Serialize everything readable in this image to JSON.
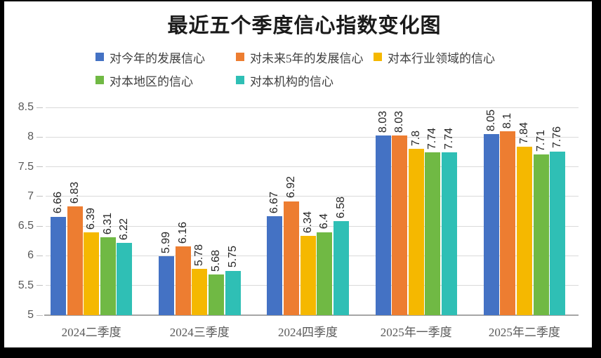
{
  "title": "最近五个季度信心指数变化图",
  "chart_data": {
    "type": "bar",
    "title": "最近五个季度信心指数变化图",
    "categories": [
      "2024二季度",
      "2024三季度",
      "2024四季度",
      "2025年一季度",
      "2025年二季度"
    ],
    "series": [
      {
        "name": "对今年的发展信心",
        "color": "#4472C4",
        "values": [
          6.66,
          5.99,
          6.67,
          8.03,
          8.05
        ]
      },
      {
        "name": "对未来5年的发展信心",
        "color": "#ED7D31",
        "values": [
          6.83,
          6.16,
          6.92,
          8.03,
          8.1
        ]
      },
      {
        "name": "对本行业领域的信心",
        "color": "#F5B800",
        "values": [
          6.39,
          5.78,
          6.34,
          7.8,
          7.84
        ]
      },
      {
        "name": "对本地区的信心",
        "color": "#70B944",
        "values": [
          6.31,
          5.68,
          6.4,
          7.74,
          7.71
        ]
      },
      {
        "name": "对本机构的信心",
        "color": "#2FBFB5",
        "values": [
          6.22,
          5.75,
          6.58,
          7.74,
          7.76
        ]
      }
    ],
    "y_axis": {
      "min": 5,
      "max": 8.5,
      "step": 0.5,
      "ticks": [
        "8.5",
        "8",
        "7.5",
        "7",
        "6.5",
        "6",
        "5.5",
        "5"
      ]
    },
    "xlabel": "",
    "ylabel": "",
    "grid": true,
    "legend_position": "top",
    "data_labels": "rotated-90-above-bars"
  },
  "colors": {
    "frame": "#000000",
    "background": "#FFFFFF",
    "gridline": "#DADADA",
    "axis_line": "#A6A6A6",
    "axis_text": "#595959",
    "value_label_text": "#262626",
    "legend_text": "#3F3F3F",
    "title_text": "#1A1A1A"
  }
}
